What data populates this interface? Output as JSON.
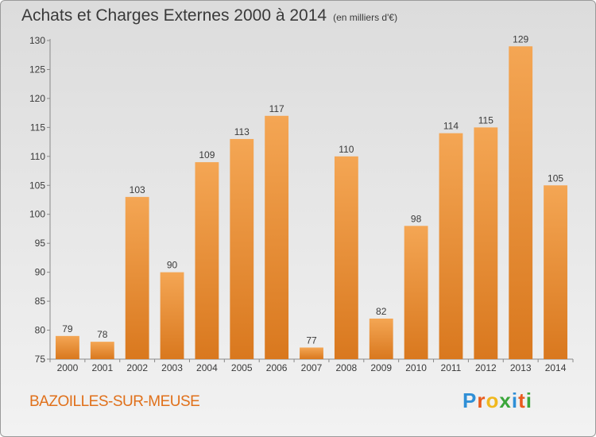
{
  "header": {
    "title": "Achats et Charges Externes 2000 à 2014",
    "unit": "(en milliers d'€)"
  },
  "footer": {
    "city": "BAZOILLES-SUR-MEUSE",
    "brand": [
      "P",
      "r",
      "o",
      "x",
      "i",
      "t",
      "i"
    ]
  },
  "colors": {
    "bar_top": "#f4a654",
    "bar_bottom": "#d9781e",
    "text": "#3a3a3a",
    "city": "#e0701a"
  },
  "chart_data": {
    "type": "bar",
    "categories": [
      "2000",
      "2001",
      "2002",
      "2003",
      "2004",
      "2005",
      "2006",
      "2007",
      "2008",
      "2009",
      "2010",
      "2011",
      "2012",
      "2013",
      "2014"
    ],
    "values": [
      79,
      78,
      103,
      90,
      109,
      113,
      117,
      77,
      110,
      82,
      98,
      114,
      115,
      129,
      105
    ],
    "title": "Achats et Charges Externes 2000 à 2014",
    "ylabel": "",
    "xlabel": "",
    "ylim": [
      75,
      130
    ],
    "yticks": [
      75,
      80,
      85,
      90,
      95,
      100,
      105,
      110,
      115,
      120,
      125,
      130
    ],
    "grid": false,
    "data_labels": true
  }
}
